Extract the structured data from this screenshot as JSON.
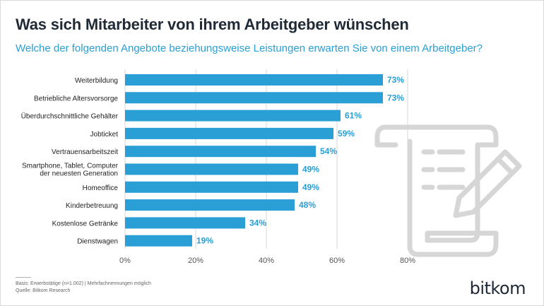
{
  "chart_data": {
    "type": "bar",
    "orientation": "horizontal",
    "title": "Was sich Mitarbeiter von ihrem Arbeitgeber wünschen",
    "subtitle": "Welche der folgenden Angebote beziehungsweise Leistungen erwarten Sie von einem Arbeitgeber?",
    "categories": [
      "Weiterbildung",
      "Betriebliche Altersvorsorge",
      "Überdurchschnittliche Gehälter",
      "Jobticket",
      "Vertrauensarbeitszeit",
      "Smartphone, Tablet, Computer der neuesten Generation",
      "Homeoffice",
      "Kinderbetreuung",
      "Kostenlose Getränke",
      "Dienstwagen"
    ],
    "values": [
      73,
      73,
      61,
      59,
      54,
      49,
      49,
      48,
      34,
      19
    ],
    "value_labels": [
      "73%",
      "73%",
      "61%",
      "59%",
      "54%",
      "49%",
      "49%",
      "48%",
      "34%",
      "19%"
    ],
    "xlim": [
      0,
      80
    ],
    "x_ticks": [
      "0%",
      "20%",
      "40%",
      "60%",
      "80%"
    ],
    "grid": true,
    "colors": {
      "bar": "#2a9fd6",
      "value_label": "#2a9fd6",
      "grid": "#d7d7d7",
      "axis_text": "#555555"
    }
  },
  "footer": {
    "basis": "Basis: Erwerbstätige (n=1.002) | Mehrfachnennungen möglich",
    "source": "Quelle: Bitkom Research"
  },
  "brand": {
    "logo_text": "bitkom"
  },
  "decoration": {
    "icon": "document-pencil-icon"
  }
}
